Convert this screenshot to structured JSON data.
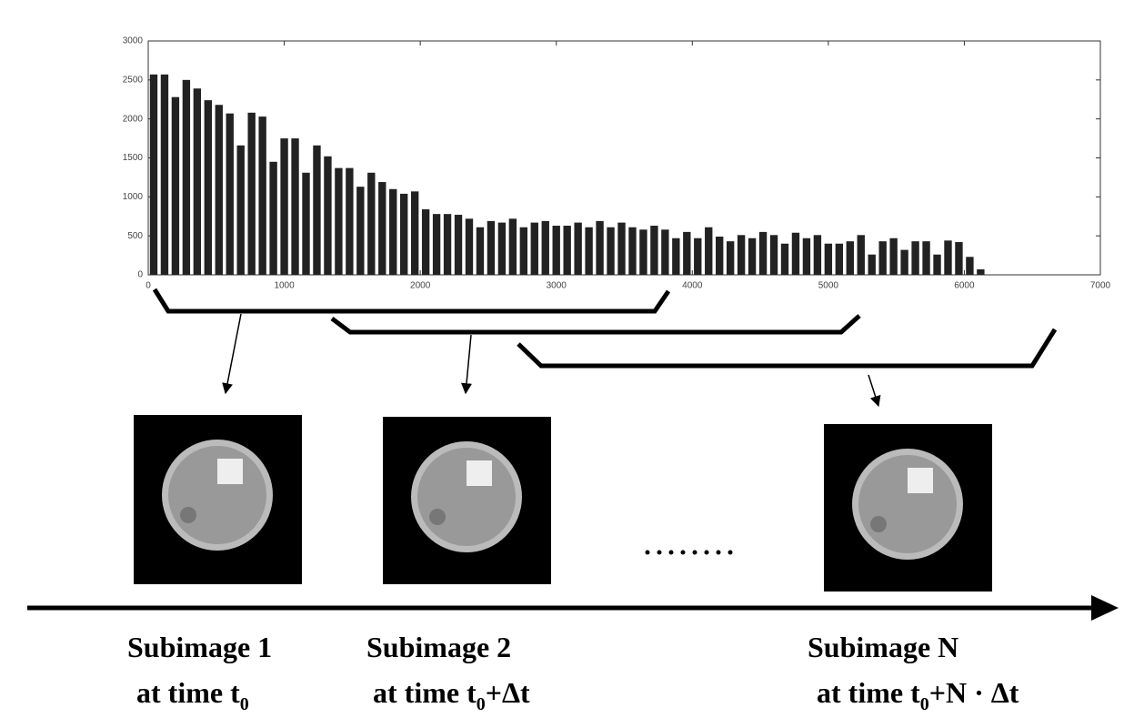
{
  "chart_data": {
    "type": "histogram",
    "bins": [
      0,
      80,
      160,
      240,
      320,
      400,
      480,
      560,
      640,
      720,
      800,
      880,
      960,
      1040,
      1120,
      1200,
      1280,
      1360,
      1440,
      1520,
      1600,
      1680,
      1760,
      1840,
      1920,
      2000,
      2080,
      2160,
      2240,
      2320,
      2400,
      2480,
      2560,
      2640,
      2720,
      2800,
      2880,
      2960,
      3040,
      3120,
      3200,
      3280,
      3360,
      3440,
      3520,
      3600,
      3680,
      3760,
      3840,
      3920,
      4000,
      4080,
      4160,
      4240,
      4320,
      4400,
      4480,
      4560,
      4640,
      4720,
      4800,
      4880,
      4960,
      5040,
      5120,
      5200,
      5280,
      5360,
      5440,
      5520,
      5600,
      5680,
      5760,
      5840,
      5920,
      6000,
      6080,
      6160
    ],
    "values": [
      2570,
      2570,
      2280,
      2500,
      2390,
      2240,
      2180,
      2070,
      1660,
      2080,
      2030,
      1450,
      1750,
      1750,
      1310,
      1660,
      1520,
      1370,
      1370,
      1130,
      1310,
      1190,
      1100,
      1040,
      1070,
      840,
      780,
      780,
      770,
      720,
      610,
      690,
      670,
      720,
      610,
      670,
      690,
      630,
      630,
      670,
      610,
      690,
      610,
      670,
      610,
      580,
      630,
      580,
      470,
      550,
      470,
      610,
      490,
      430,
      510,
      470,
      550,
      510,
      400,
      540,
      470,
      510,
      400,
      400,
      430,
      510,
      260,
      430,
      470,
      320,
      430,
      430,
      260,
      440,
      420,
      230,
      70
    ],
    "color": "#222222",
    "xlim": [
      0,
      7000
    ],
    "xticks": [
      0,
      1000,
      2000,
      3000,
      4000,
      5000,
      6000,
      7000
    ],
    "ylim": [
      0,
      3000
    ],
    "yticks": [
      0,
      500,
      1000,
      1500,
      2000,
      2500,
      3000
    ]
  },
  "subimages": [
    {
      "label": "Subimage 1",
      "time": [
        "at time t",
        "0"
      ]
    },
    {
      "label": "Subimage 2",
      "time": [
        "at time t",
        "0",
        "+Δt"
      ]
    },
    {
      "label": "Subimage N",
      "time": [
        "at time t",
        "0",
        "+N · Δt"
      ]
    }
  ]
}
